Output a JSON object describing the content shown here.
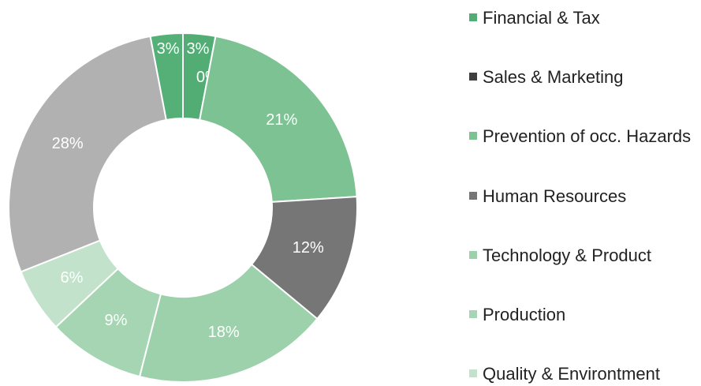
{
  "chart_data": {
    "type": "donut",
    "categories": [
      "Financial & Tax",
      "Sales & Marketing",
      "Prevention of occ. Hazards",
      "Human Resources",
      "Technology & Product",
      "Production",
      "Quality & Environtment",
      null,
      null
    ],
    "values": [
      3,
      0,
      21,
      12,
      18,
      9,
      6,
      28,
      3
    ],
    "value_labels": [
      "3%",
      "0%",
      "21%",
      "12%",
      "18%",
      "9%",
      "6%",
      "28%",
      "3%"
    ],
    "colors": [
      "#52ad75",
      "#3f3f3f",
      "#7cc292",
      "#767676",
      "#9dd1ab",
      "#a6d5b3",
      "#c3e2cb",
      "#b1b1b1",
      "#55b077"
    ],
    "legend": "right"
  }
}
